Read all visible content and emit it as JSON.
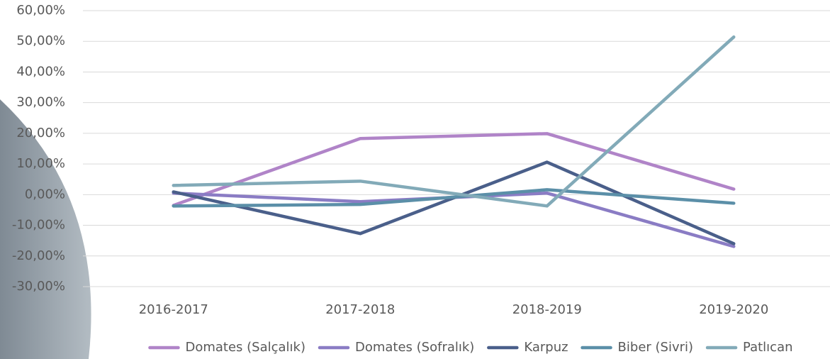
{
  "chart_data": {
    "type": "line",
    "categories": [
      "2016-2017",
      "2017-2018",
      "2018-2019",
      "2019-2020"
    ],
    "series": [
      {
        "name": "Domates (Salçalık)",
        "color": "#b084c8",
        "values": [
          -3.5,
          18.3,
          19.9,
          1.8
        ]
      },
      {
        "name": "Domates (Sofralık)",
        "color": "#8a7cc4",
        "values": [
          0.5,
          -2.3,
          0.5,
          -16.9
        ]
      },
      {
        "name": "Karpuz",
        "color": "#4a5f8a",
        "values": [
          0.9,
          -12.7,
          10.6,
          -16.0
        ]
      },
      {
        "name": "Biber (Sivri)",
        "color": "#5b8fa8",
        "values": [
          -3.7,
          -3.2,
          1.6,
          -2.8
        ]
      },
      {
        "name": "Patlıcan",
        "color": "#82aab8",
        "values": [
          3.0,
          4.4,
          -3.7,
          51.4
        ]
      }
    ],
    "ylim": [
      -30,
      60
    ],
    "yticks": [
      {
        "value": -30,
        "label": "-30,00%"
      },
      {
        "value": -20,
        "label": "-20,00%"
      },
      {
        "value": -10,
        "label": "-10,00%"
      },
      {
        "value": 0,
        "label": "0,00%"
      },
      {
        "value": 10,
        "label": "10,00%"
      },
      {
        "value": 20,
        "label": "20,00%"
      },
      {
        "value": 30,
        "label": "30,00%"
      },
      {
        "value": 40,
        "label": "40,00%"
      },
      {
        "value": 50,
        "label": "50,00%"
      },
      {
        "value": 60,
        "label": "60,00%"
      }
    ],
    "grid": true,
    "legend": "bottom"
  }
}
